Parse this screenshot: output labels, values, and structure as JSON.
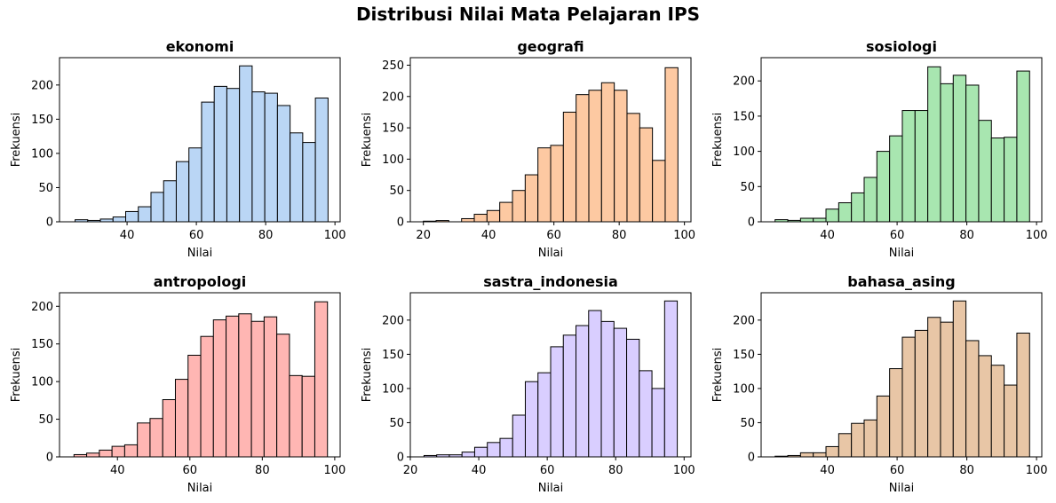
{
  "title": "Distribusi Nilai Mata Pelajaran IPS",
  "chart_data": [
    {
      "type": "bar",
      "subtype": "histogram",
      "title": "ekonomi",
      "xlabel": "Nilai",
      "ylabel": "Frekuensi",
      "color": "#bad6f5",
      "xlim": [
        20.5,
        101.5
      ],
      "ylim": [
        0,
        240
      ],
      "xticks": [
        40,
        60,
        80,
        100
      ],
      "yticks": [
        0,
        50,
        100,
        150,
        200
      ],
      "bin_start": 25.0,
      "bin_end": 98.0,
      "values": [
        3,
        2,
        4,
        7,
        15,
        22,
        43,
        60,
        88,
        108,
        175,
        198,
        195,
        228,
        190,
        188,
        170,
        130,
        116,
        181
      ]
    },
    {
      "type": "bar",
      "subtype": "histogram",
      "title": "geografi",
      "xlabel": "Nilai",
      "ylabel": "Frekuensi",
      "color": "#fdc9a2",
      "xlim": [
        16,
        102
      ],
      "ylim": [
        0,
        262
      ],
      "xticks": [
        20,
        40,
        60,
        80,
        100
      ],
      "yticks": [
        0,
        50,
        100,
        150,
        200,
        250
      ],
      "bin_start": 20.0,
      "bin_end": 98.0,
      "values": [
        1,
        2,
        0,
        5,
        12,
        18,
        31,
        50,
        75,
        118,
        122,
        175,
        203,
        210,
        222,
        210,
        173,
        150,
        98,
        246
      ]
    },
    {
      "type": "bar",
      "subtype": "histogram",
      "title": "sosiologi",
      "xlabel": "Nilai",
      "ylabel": "Frekuensi",
      "color": "#a8e6b0",
      "xlim": [
        21,
        101.5
      ],
      "ylim": [
        0,
        233
      ],
      "xticks": [
        40,
        60,
        80,
        100
      ],
      "yticks": [
        0,
        50,
        100,
        150,
        200
      ],
      "bin_start": 25.0,
      "bin_end": 98.0,
      "values": [
        3,
        2,
        5,
        5,
        18,
        27,
        41,
        63,
        100,
        122,
        158,
        158,
        220,
        196,
        208,
        194,
        144,
        119,
        120,
        214
      ]
    },
    {
      "type": "bar",
      "subtype": "histogram",
      "title": "antropologi",
      "xlabel": "Nilai",
      "ylabel": "Frekuensi",
      "color": "#ffb6b3",
      "xlim": [
        24,
        101.5
      ],
      "ylim": [
        0,
        218
      ],
      "xticks": [
        40,
        60,
        80,
        100
      ],
      "yticks": [
        0,
        50,
        100,
        150,
        200
      ],
      "bin_start": 28.0,
      "bin_end": 98.0,
      "values": [
        3,
        5,
        9,
        14,
        16,
        45,
        51,
        76,
        103,
        135,
        160,
        182,
        187,
        190,
        180,
        186,
        163,
        108,
        107,
        206
      ]
    },
    {
      "type": "bar",
      "subtype": "histogram",
      "title": "sastra_indonesia",
      "xlabel": "Nilai",
      "ylabel": "Frekuensi",
      "color": "#d9ceff",
      "xlim": [
        20,
        102
      ],
      "ylim": [
        0,
        240
      ],
      "xticks": [
        20,
        40,
        60,
        80,
        100
      ],
      "yticks": [
        0,
        50,
        100,
        150,
        200
      ],
      "bin_start": 24.0,
      "bin_end": 98.0,
      "values": [
        2,
        3,
        3,
        7,
        14,
        21,
        27,
        61,
        110,
        123,
        161,
        178,
        192,
        214,
        198,
        188,
        172,
        126,
        100,
        228
      ]
    },
    {
      "type": "bar",
      "subtype": "histogram",
      "title": "bahasa_asing",
      "xlabel": "Nilai",
      "ylabel": "Frekuensi",
      "color": "#e8c6a6",
      "xlim": [
        21,
        101.5
      ],
      "ylim": [
        0,
        240
      ],
      "xticks": [
        40,
        60,
        80,
        100
      ],
      "yticks": [
        0,
        50,
        100,
        150,
        200
      ],
      "bin_start": 25.0,
      "bin_end": 98.0,
      "values": [
        1,
        2,
        6,
        6,
        15,
        34,
        49,
        54,
        89,
        129,
        175,
        185,
        204,
        197,
        228,
        170,
        148,
        134,
        105,
        181
      ]
    }
  ]
}
